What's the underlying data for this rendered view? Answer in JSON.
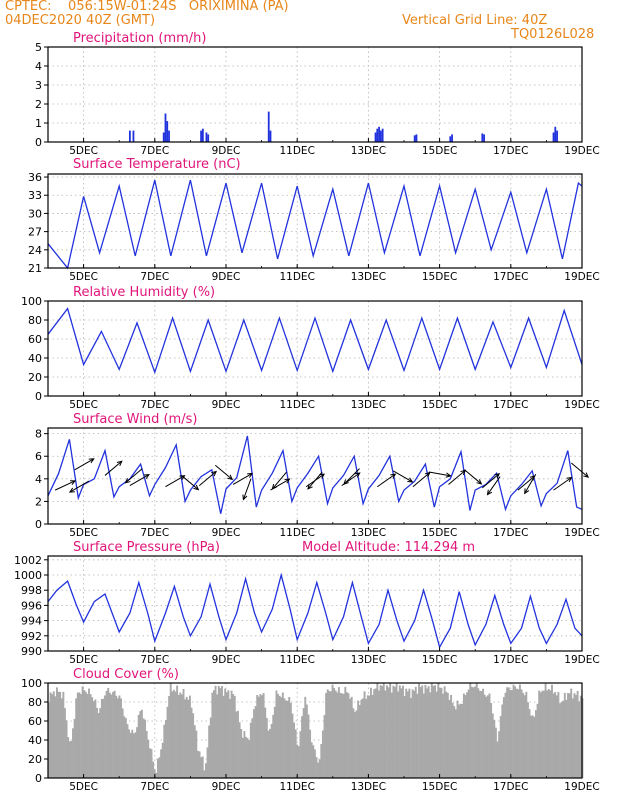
{
  "header": {
    "station_line": "CPTEC:    056:15W-01:24S   ORIXIMINA (PA)",
    "run_line": "04DEC2020 40Z (GMT)",
    "grid_line": "Vertical Grid Line: 40Z",
    "code": "TQ0126L028"
  },
  "colors": {
    "header": "#e8861a",
    "title": "#e0157a",
    "series": "#2233dd",
    "cloud": "#a9a9a9",
    "grid": "#b4b4b4",
    "wind_arrow": "#000000"
  },
  "chart_data": [
    {
      "type": "bar",
      "title": "Precipitation (mm/h)",
      "x_tick_labels": [
        "5DEC",
        "7DEC",
        "9DEC",
        "11DEC",
        "13DEC",
        "15DEC",
        "17DEC",
        "19DEC"
      ],
      "x_range_days": [
        4.0,
        19.0
      ],
      "ylim": [
        0,
        5
      ],
      "yticks": [
        0,
        1,
        2,
        3,
        4,
        5
      ],
      "grid": true,
      "bars": [
        {
          "day": 6.3,
          "value": 0.6
        },
        {
          "day": 6.4,
          "value": 0.6
        },
        {
          "day": 7.25,
          "value": 0.5
        },
        {
          "day": 7.3,
          "value": 1.5
        },
        {
          "day": 7.35,
          "value": 1.1
        },
        {
          "day": 7.4,
          "value": 0.6
        },
        {
          "day": 8.3,
          "value": 0.6
        },
        {
          "day": 8.35,
          "value": 0.7
        },
        {
          "day": 8.45,
          "value": 0.5
        },
        {
          "day": 8.5,
          "value": 0.4
        },
        {
          "day": 10.2,
          "value": 1.6
        },
        {
          "day": 10.25,
          "value": 0.6
        },
        {
          "day": 13.2,
          "value": 0.5
        },
        {
          "day": 13.25,
          "value": 0.7
        },
        {
          "day": 13.3,
          "value": 0.8
        },
        {
          "day": 13.35,
          "value": 0.6
        },
        {
          "day": 13.4,
          "value": 0.7
        },
        {
          "day": 14.3,
          "value": 0.35
        },
        {
          "day": 14.35,
          "value": 0.4
        },
        {
          "day": 15.3,
          "value": 0.3
        },
        {
          "day": 15.35,
          "value": 0.4
        },
        {
          "day": 16.2,
          "value": 0.45
        },
        {
          "day": 16.25,
          "value": 0.4
        },
        {
          "day": 18.2,
          "value": 0.5
        },
        {
          "day": 18.25,
          "value": 0.8
        },
        {
          "day": 18.3,
          "value": 0.6
        }
      ]
    },
    {
      "type": "line",
      "title": "Surface Temperature (nC)",
      "x_tick_labels": [
        "5DEC",
        "7DEC",
        "9DEC",
        "11DEC",
        "13DEC",
        "15DEC",
        "17DEC",
        "19DEC"
      ],
      "x_range_days": [
        4.0,
        19.0
      ],
      "ylim": [
        21,
        36.5
      ],
      "yticks": [
        21,
        24,
        27,
        30,
        33,
        36
      ],
      "grid": true,
      "x": [
        4.0,
        4.55,
        5.0,
        5.45,
        6.0,
        6.45,
        7.0,
        7.45,
        8.0,
        8.45,
        9.0,
        9.45,
        10.0,
        10.45,
        11.0,
        11.45,
        12.0,
        12.45,
        13.0,
        13.45,
        14.0,
        14.45,
        15.0,
        15.45,
        16.0,
        16.45,
        17.0,
        17.45,
        18.0,
        18.45,
        18.9,
        19.0
      ],
      "y": [
        25.0,
        21.0,
        32.8,
        23.5,
        34.5,
        23.0,
        35.5,
        23.0,
        35.5,
        23.0,
        35.0,
        23.5,
        35.0,
        22.5,
        34.5,
        23.0,
        34.0,
        23.0,
        35.0,
        23.5,
        34.5,
        23.0,
        34.5,
        23.5,
        34.0,
        24.0,
        33.5,
        23.5,
        34.0,
        22.5,
        35.0,
        34.5
      ]
    },
    {
      "type": "line",
      "title": "Relative Humidity (%)",
      "x_tick_labels": [
        "5DEC",
        "7DEC",
        "9DEC",
        "11DEC",
        "13DEC",
        "15DEC",
        "17DEC",
        "19DEC"
      ],
      "x_range_days": [
        4.0,
        19.0
      ],
      "ylim": [
        0,
        100
      ],
      "yticks": [
        0,
        20,
        40,
        60,
        80,
        100
      ],
      "grid": true,
      "x": [
        4.0,
        4.55,
        5.0,
        5.5,
        6.0,
        6.5,
        7.0,
        7.5,
        8.0,
        8.5,
        9.0,
        9.5,
        10.0,
        10.5,
        11.0,
        11.5,
        12.0,
        12.5,
        13.0,
        13.5,
        14.0,
        14.5,
        15.0,
        15.5,
        16.0,
        16.5,
        17.0,
        17.5,
        18.0,
        18.5,
        19.0
      ],
      "y": [
        65,
        92,
        33,
        68,
        28,
        77,
        25,
        82,
        26,
        80,
        26,
        80,
        27,
        82,
        27,
        82,
        26,
        80,
        28,
        80,
        27,
        82,
        28,
        82,
        28,
        78,
        30,
        82,
        30,
        90,
        33
      ]
    },
    {
      "type": "line",
      "title": "Surface Wind (m/s)",
      "x_tick_labels": [
        "5DEC",
        "7DEC",
        "9DEC",
        "11DEC",
        "13DEC",
        "15DEC",
        "17DEC",
        "19DEC"
      ],
      "x_range_days": [
        4.0,
        19.0
      ],
      "ylim": [
        0,
        8.5
      ],
      "yticks": [
        0,
        2,
        4,
        6,
        8
      ],
      "grid": true,
      "x": [
        4.0,
        4.3,
        4.6,
        4.85,
        5.0,
        5.3,
        5.6,
        5.85,
        6.0,
        6.3,
        6.6,
        6.85,
        7.0,
        7.3,
        7.6,
        7.85,
        8.0,
        8.3,
        8.6,
        8.85,
        9.0,
        9.3,
        9.6,
        9.85,
        10.0,
        10.3,
        10.6,
        10.85,
        11.0,
        11.3,
        11.6,
        11.85,
        12.0,
        12.3,
        12.6,
        12.85,
        13.0,
        13.3,
        13.6,
        13.85,
        14.0,
        14.3,
        14.6,
        14.85,
        15.0,
        15.3,
        15.6,
        15.85,
        16.0,
        16.3,
        16.6,
        16.85,
        17.0,
        17.3,
        17.6,
        17.85,
        18.0,
        18.3,
        18.6,
        18.85,
        19.0
      ],
      "y": [
        2.5,
        4.5,
        7.5,
        2.3,
        3.5,
        4.0,
        6.5,
        2.4,
        3.3,
        4.0,
        5.3,
        2.5,
        3.5,
        5.0,
        7.0,
        2.0,
        3.0,
        4.2,
        4.8,
        0.9,
        3.1,
        4.1,
        7.8,
        1.5,
        3.0,
        4.5,
        6.5,
        2.0,
        3.2,
        4.5,
        6.0,
        1.8,
        3.2,
        4.3,
        6.0,
        1.8,
        3.1,
        4.3,
        6.0,
        2.0,
        3.0,
        3.8,
        5.3,
        1.5,
        3.3,
        4.0,
        6.4,
        1.2,
        3.0,
        3.5,
        4.5,
        1.3,
        2.5,
        3.5,
        4.7,
        1.6,
        2.7,
        3.6,
        6.5,
        1.5,
        1.3
      ],
      "arrows": [
        {
          "day": 4.2,
          "speed": 3.0,
          "dir_deg": 25
        },
        {
          "day": 4.75,
          "speed": 4.8,
          "dir_deg": 30
        },
        {
          "day": 5.15,
          "speed": 3.8,
          "dir_deg": 210
        },
        {
          "day": 5.6,
          "speed": 4.3,
          "dir_deg": 40
        },
        {
          "day": 6.3,
          "speed": 3.4,
          "dir_deg": 30
        },
        {
          "day": 6.65,
          "speed": 4.9,
          "dir_deg": 220
        },
        {
          "day": 7.3,
          "speed": 3.3,
          "dir_deg": 30
        },
        {
          "day": 7.75,
          "speed": 4.3,
          "dir_deg": 320
        },
        {
          "day": 8.25,
          "speed": 3.4,
          "dir_deg": 40
        },
        {
          "day": 8.7,
          "speed": 5.2,
          "dir_deg": 320
        },
        {
          "day": 9.2,
          "speed": 3.5,
          "dir_deg": 30
        },
        {
          "day": 9.7,
          "speed": 4.0,
          "dir_deg": 250
        },
        {
          "day": 10.25,
          "speed": 3.0,
          "dir_deg": 30
        },
        {
          "day": 10.7,
          "speed": 4.6,
          "dir_deg": 230
        },
        {
          "day": 11.25,
          "speed": 3.3,
          "dir_deg": 35
        },
        {
          "day": 11.7,
          "speed": 4.6,
          "dir_deg": 230
        },
        {
          "day": 12.25,
          "speed": 3.4,
          "dir_deg": 35
        },
        {
          "day": 12.75,
          "speed": 4.9,
          "dir_deg": 225
        },
        {
          "day": 13.25,
          "speed": 3.3,
          "dir_deg": 35
        },
        {
          "day": 13.7,
          "speed": 4.7,
          "dir_deg": 330
        },
        {
          "day": 14.25,
          "speed": 3.3,
          "dir_deg": 40
        },
        {
          "day": 14.7,
          "speed": 4.6,
          "dir_deg": 350
        },
        {
          "day": 15.25,
          "speed": 3.5,
          "dir_deg": 40
        },
        {
          "day": 15.7,
          "speed": 4.8,
          "dir_deg": 320
        },
        {
          "day": 16.2,
          "speed": 3.2,
          "dir_deg": 40
        },
        {
          "day": 16.7,
          "speed": 4.2,
          "dir_deg": 235
        },
        {
          "day": 17.2,
          "speed": 3.0,
          "dir_deg": 40
        },
        {
          "day": 17.7,
          "speed": 4.4,
          "dir_deg": 240
        },
        {
          "day": 18.2,
          "speed": 3.0,
          "dir_deg": 35
        },
        {
          "day": 18.7,
          "speed": 5.4,
          "dir_deg": 320
        }
      ]
    },
    {
      "type": "line",
      "title": "Surface Pressure (hPa)",
      "annotation": "Model Altitude: 114.294 m",
      "x_tick_labels": [
        "5DEC",
        "7DEC",
        "9DEC",
        "11DEC",
        "13DEC",
        "15DEC",
        "17DEC",
        "19DEC"
      ],
      "x_range_days": [
        4.0,
        19.0
      ],
      "ylim": [
        990,
        1002.5
      ],
      "yticks": [
        990,
        992,
        994,
        996,
        998,
        1000,
        1002
      ],
      "grid": true,
      "x": [
        4.0,
        4.25,
        4.55,
        4.8,
        5.0,
        5.3,
        5.6,
        5.8,
        6.0,
        6.3,
        6.55,
        6.8,
        7.0,
        7.3,
        7.55,
        7.8,
        8.0,
        8.3,
        8.55,
        8.8,
        9.0,
        9.3,
        9.55,
        9.8,
        10.0,
        10.3,
        10.55,
        10.8,
        11.0,
        11.3,
        11.55,
        11.8,
        12.0,
        12.3,
        12.55,
        12.8,
        13.0,
        13.3,
        13.55,
        13.8,
        14.0,
        14.3,
        14.55,
        14.8,
        15.0,
        15.3,
        15.55,
        15.8,
        16.0,
        16.3,
        16.55,
        16.8,
        17.0,
        17.3,
        17.55,
        17.8,
        18.0,
        18.3,
        18.55,
        18.8,
        19.0
      ],
      "y": [
        996.5,
        998.0,
        999.2,
        996.0,
        993.8,
        996.5,
        997.5,
        995.0,
        992.5,
        995.0,
        999.0,
        995.0,
        991.3,
        995.0,
        998.5,
        994.5,
        992.0,
        994.5,
        998.8,
        994.5,
        991.5,
        995.0,
        999.5,
        995.0,
        992.5,
        995.5,
        1000.0,
        995.5,
        991.5,
        995.0,
        999.0,
        995.0,
        991.5,
        994.5,
        999.0,
        994.5,
        991.0,
        993.5,
        998.0,
        994.0,
        991.3,
        994.0,
        998.0,
        994.0,
        990.5,
        993.0,
        997.8,
        993.5,
        990.8,
        993.5,
        997.3,
        993.5,
        991.0,
        993.0,
        997.2,
        993.0,
        991.0,
        993.5,
        996.8,
        993.0,
        992.0
      ]
    },
    {
      "type": "area",
      "title": "Cloud Cover (%)",
      "x_tick_labels": [
        "5DEC",
        "7DEC",
        "9DEC",
        "11DEC",
        "13DEC",
        "15DEC",
        "17DEC",
        "19DEC"
      ],
      "x_range_days": [
        4.0,
        19.0
      ],
      "ylim": [
        0,
        100
      ],
      "yticks": [
        0,
        20,
        40,
        60,
        80,
        100
      ],
      "grid": true,
      "x": [
        4.0,
        4.2,
        4.4,
        4.6,
        4.8,
        5.0,
        5.2,
        5.4,
        5.6,
        5.8,
        6.0,
        6.2,
        6.4,
        6.6,
        6.8,
        7.0,
        7.2,
        7.4,
        7.6,
        7.8,
        8.0,
        8.2,
        8.4,
        8.6,
        8.8,
        9.0,
        9.2,
        9.4,
        9.6,
        9.8,
        10.0,
        10.2,
        10.4,
        10.6,
        10.8,
        11.0,
        11.2,
        11.4,
        11.6,
        11.8,
        12.0,
        12.2,
        12.4,
        12.6,
        12.8,
        13.0,
        13.2,
        13.4,
        13.6,
        13.8,
        14.0,
        14.2,
        14.4,
        14.6,
        14.8,
        15.0,
        15.2,
        15.4,
        15.6,
        15.8,
        16.0,
        16.2,
        16.4,
        16.6,
        16.8,
        17.0,
        17.2,
        17.4,
        17.6,
        17.8,
        18.0,
        18.2,
        18.4,
        18.6,
        18.8,
        19.0
      ],
      "y": [
        85,
        92,
        88,
        30,
        90,
        93,
        88,
        70,
        92,
        90,
        85,
        55,
        45,
        75,
        40,
        5,
        40,
        95,
        92,
        88,
        80,
        30,
        10,
        92,
        95,
        90,
        88,
        50,
        40,
        80,
        92,
        45,
        90,
        85,
        80,
        30,
        88,
        35,
        15,
        92,
        95,
        90,
        92,
        70,
        85,
        88,
        96,
        98,
        95,
        97,
        92,
        90,
        96,
        94,
        97,
        95,
        90,
        75,
        80,
        96,
        98,
        90,
        85,
        40,
        92,
        95,
        96,
        88,
        60,
        92,
        95,
        92,
        80,
        90,
        88,
        84
      ]
    }
  ]
}
